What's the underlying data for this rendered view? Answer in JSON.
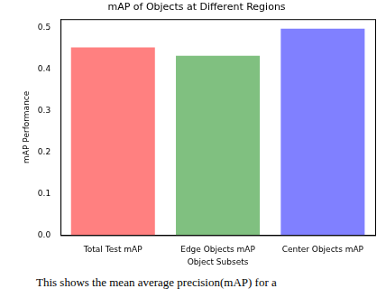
{
  "chart_data": {
    "type": "bar",
    "title": "mAP of Objects at Different Regions",
    "x_label": "Object Subsets",
    "y_label": "mAP Performance",
    "categories": [
      "Total Test mAP",
      "Edge Objects mAP",
      "Center Objects mAP"
    ],
    "values": [
      0.452,
      0.432,
      0.497
    ],
    "colors": [
      "#ff8080",
      "#80c080",
      "#8080ff"
    ],
    "ylim": [
      0,
      0.52
    ],
    "yticks": [
      {
        "value": 0,
        "label": "0.0"
      },
      0.1,
      0.2,
      0.3,
      0.4,
      0.5
    ],
    "grid": false
  },
  "caption": "This shows the mean average precision(mAP) for a"
}
